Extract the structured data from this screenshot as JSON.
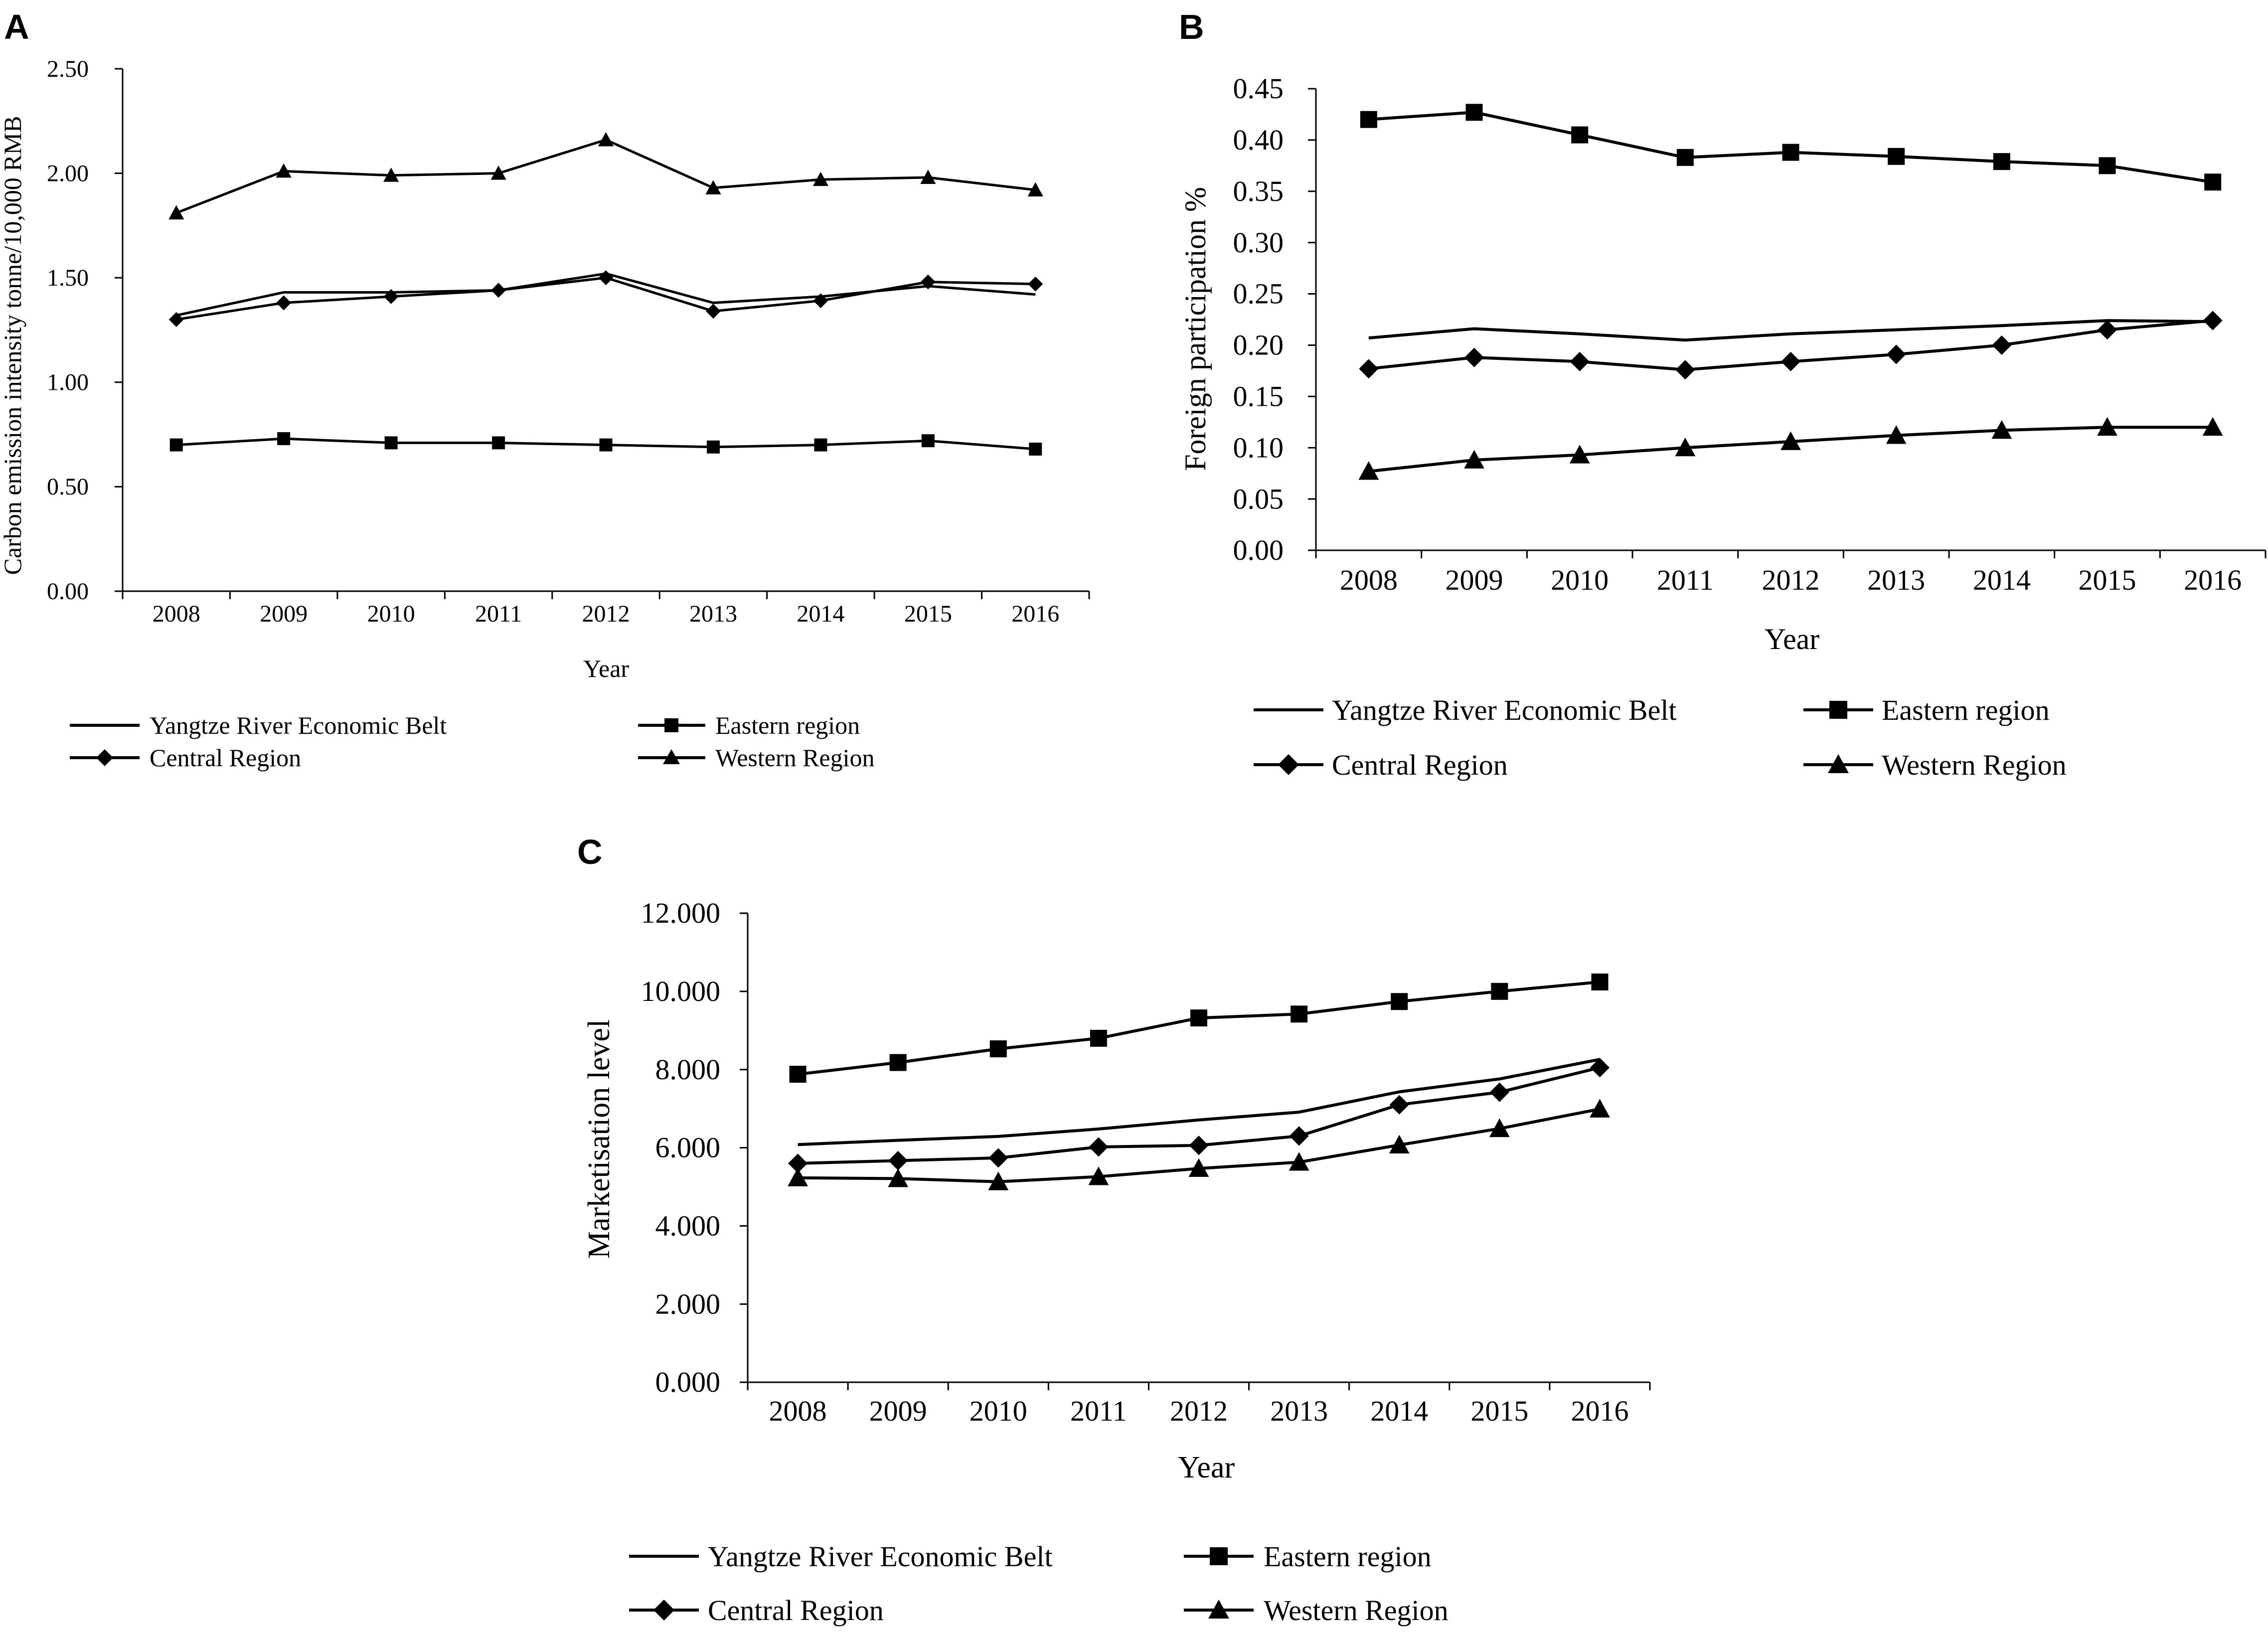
{
  "legend_labels": {
    "ybeb": "Yangtze River Economic Belt",
    "eastern": "Eastern region",
    "central": "Central Region",
    "western": "Western Region"
  },
  "colors": {
    "line": "#000000",
    "background": "#ffffff"
  },
  "chart_data": [
    {
      "id": "A",
      "panel_label": "A",
      "type": "line",
      "title": "",
      "xlabel": "Year",
      "ylabel": "Carbon emission intensity tonne/10,000 RMB",
      "categories": [
        "2008",
        "2009",
        "2010",
        "2011",
        "2012",
        "2013",
        "2014",
        "2015",
        "2016"
      ],
      "ylim": [
        0,
        2.5
      ],
      "yticks": [
        "0.00",
        "0.50",
        "1.00",
        "1.50",
        "2.00",
        "2.50"
      ],
      "grid": false,
      "legend_position": "bottom",
      "series": [
        {
          "key": "ybeb",
          "name": "Yangtze River Economic Belt",
          "marker": "none",
          "values": [
            1.32,
            1.43,
            1.43,
            1.44,
            1.52,
            1.38,
            1.41,
            1.46,
            1.42
          ]
        },
        {
          "key": "eastern",
          "name": "Eastern region",
          "marker": "square",
          "values": [
            0.7,
            0.73,
            0.71,
            0.71,
            0.7,
            0.69,
            0.7,
            0.72,
            0.68
          ]
        },
        {
          "key": "central",
          "name": "Central Region",
          "marker": "diamond",
          "values": [
            1.3,
            1.38,
            1.41,
            1.44,
            1.5,
            1.34,
            1.39,
            1.48,
            1.47
          ]
        },
        {
          "key": "western",
          "name": "Western Region",
          "marker": "triangle",
          "values": [
            1.81,
            2.01,
            1.99,
            2.0,
            2.16,
            1.93,
            1.97,
            1.98,
            1.92
          ]
        }
      ]
    },
    {
      "id": "B",
      "panel_label": "B",
      "type": "line",
      "title": "",
      "xlabel": "Year",
      "ylabel": "Foreign participation  %",
      "categories": [
        "2008",
        "2009",
        "2010",
        "2011",
        "2012",
        "2013",
        "2014",
        "2015",
        "2016"
      ],
      "ylim": [
        0,
        0.45
      ],
      "yticks": [
        "0.00",
        "0.05",
        "0.10",
        "0.15",
        "0.20",
        "0.25",
        "0.30",
        "0.35",
        "0.40",
        "0.45"
      ],
      "grid": false,
      "legend_position": "bottom",
      "series": [
        {
          "key": "ybeb",
          "name": "Yangtze River Economic Belt",
          "marker": "none",
          "values": [
            0.207,
            0.216,
            0.211,
            0.205,
            0.211,
            0.215,
            0.219,
            0.224,
            0.223
          ]
        },
        {
          "key": "eastern",
          "name": "Eastern region",
          "marker": "square",
          "values": [
            0.42,
            0.427,
            0.405,
            0.383,
            0.388,
            0.384,
            0.379,
            0.375,
            0.359
          ]
        },
        {
          "key": "central",
          "name": "Central Region",
          "marker": "diamond",
          "values": [
            0.177,
            0.188,
            0.184,
            0.176,
            0.184,
            0.191,
            0.2,
            0.215,
            0.224
          ]
        },
        {
          "key": "western",
          "name": "Western Region",
          "marker": "triangle",
          "values": [
            0.077,
            0.088,
            0.093,
            0.1,
            0.106,
            0.112,
            0.117,
            0.12,
            0.12
          ]
        }
      ]
    },
    {
      "id": "C",
      "panel_label": "C",
      "type": "line",
      "title": "",
      "xlabel": "Year",
      "ylabel": "Marketisation level",
      "categories": [
        "2008",
        "2009",
        "2010",
        "2011",
        "2012",
        "2013",
        "2014",
        "2015",
        "2016"
      ],
      "ylim": [
        0,
        12
      ],
      "yticks": [
        "0.000",
        "2.000",
        "4.000",
        "6.000",
        "8.000",
        "10.000",
        "12.000"
      ],
      "grid": false,
      "legend_position": "bottom",
      "series": [
        {
          "key": "ybeb",
          "name": "Yangtze River Economic Belt",
          "marker": "none",
          "values": [
            6.08,
            6.19,
            6.29,
            6.48,
            6.71,
            6.91,
            7.43,
            7.76,
            8.26
          ]
        },
        {
          "key": "eastern",
          "name": "Eastern region",
          "marker": "square",
          "values": [
            7.88,
            8.18,
            8.53,
            8.8,
            9.32,
            9.42,
            9.74,
            10.0,
            10.24
          ]
        },
        {
          "key": "central",
          "name": "Central Region",
          "marker": "diamond",
          "values": [
            5.6,
            5.67,
            5.74,
            6.02,
            6.06,
            6.3,
            7.1,
            7.42,
            8.05
          ]
        },
        {
          "key": "western",
          "name": "Western Region",
          "marker": "triangle",
          "values": [
            5.23,
            5.21,
            5.13,
            5.26,
            5.47,
            5.63,
            6.07,
            6.49,
            6.99
          ]
        }
      ]
    }
  ]
}
